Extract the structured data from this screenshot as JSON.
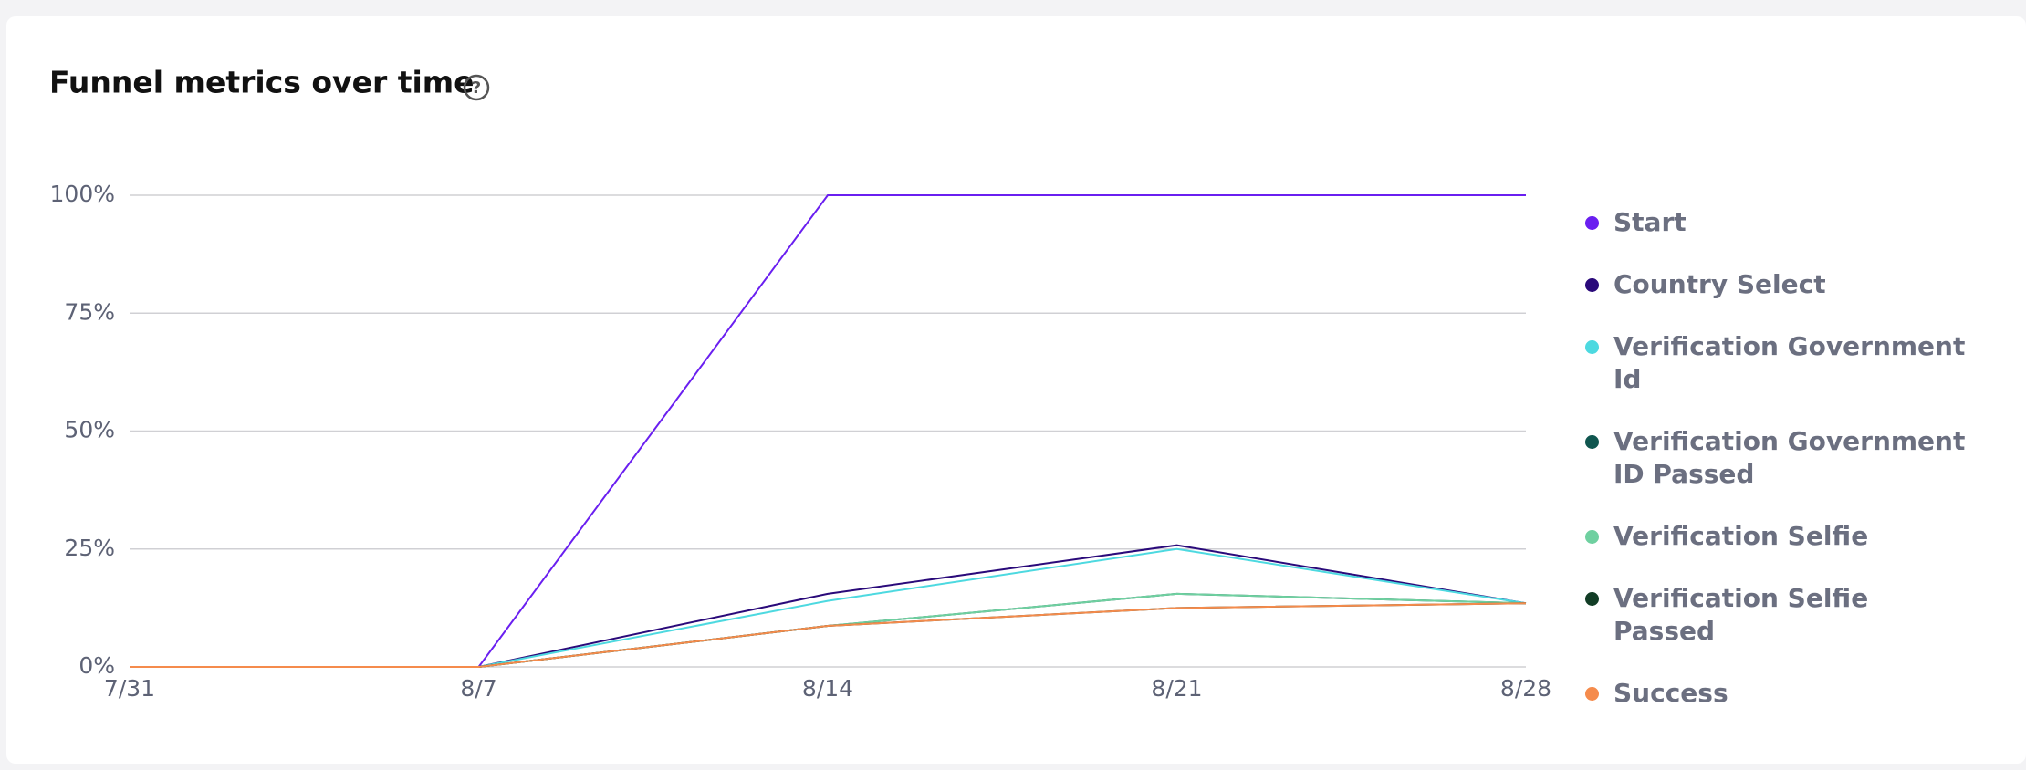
{
  "chart_data": {
    "type": "line",
    "title": "Funnel metrics over time",
    "categories": [
      "7/31",
      "8/7",
      "8/14",
      "8/21",
      "8/28"
    ],
    "ylim": [
      0,
      100
    ],
    "yticks": [
      {
        "value": 0,
        "label": "0%"
      },
      {
        "value": 25,
        "label": "25%"
      },
      {
        "value": 50,
        "label": "50%"
      },
      {
        "value": 75,
        "label": "75%"
      },
      {
        "value": 100,
        "label": "100%"
      }
    ],
    "grid": true,
    "legend": "right",
    "series": [
      {
        "name": "Start",
        "color": "#6a1ff0",
        "values": [
          0,
          0,
          100,
          100,
          100
        ]
      },
      {
        "name": "Country Select",
        "color": "#2a0a7a",
        "values": [
          0,
          0,
          15.5,
          25.8,
          13.5
        ]
      },
      {
        "name": "Verification Government Id",
        "color": "#4dd9e0",
        "values": [
          0,
          0,
          14,
          25,
          13.5
        ]
      },
      {
        "name": "Verification Government ID Passed",
        "color": "#10564f",
        "values": [
          0,
          0,
          8.7,
          15.5,
          13.5
        ]
      },
      {
        "name": "Verification Selfie",
        "color": "#6fd0a0",
        "values": [
          0,
          0,
          8.7,
          15.5,
          13.5
        ]
      },
      {
        "name": "Verification Selfie Passed",
        "color": "#123d26",
        "values": [
          0,
          0,
          8.7,
          12.5,
          13.5
        ]
      },
      {
        "name": "Success",
        "color": "#f58b4c",
        "values": [
          0,
          0,
          8.7,
          12.5,
          13.5
        ]
      }
    ]
  }
}
